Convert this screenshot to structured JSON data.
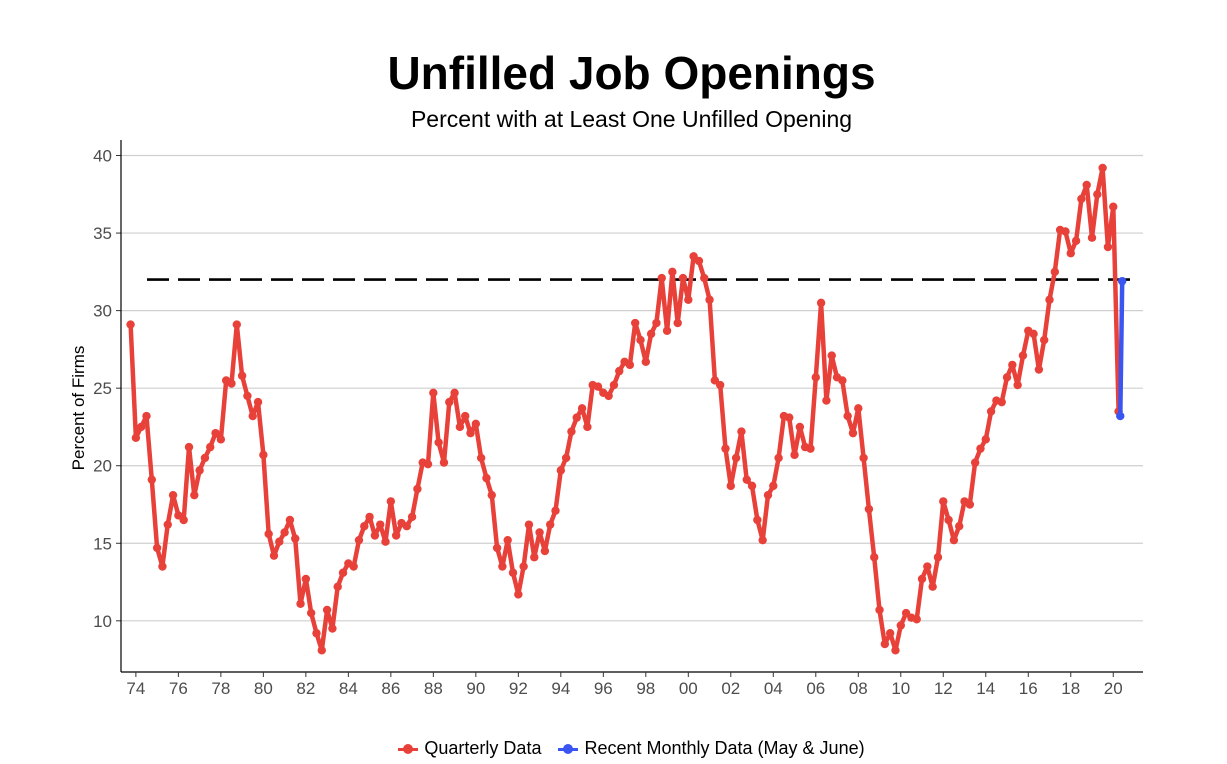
{
  "chart_data": {
    "type": "line",
    "title": "Unfilled Job Openings",
    "subtitle": "Percent with at Least One Unfilled Opening",
    "ylabel": "Percent of Firms",
    "xlabel": "",
    "ylim": [
      6.7,
      41
    ],
    "xlim": [
      1973.3,
      2021.4
    ],
    "x_ticks": [
      1974,
      1976,
      1978,
      1980,
      1982,
      1984,
      1986,
      1988,
      1990,
      1992,
      1994,
      1996,
      1998,
      2000,
      2002,
      2004,
      2006,
      2008,
      2010,
      2012,
      2014,
      2016,
      2018,
      2020
    ],
    "x_tick_labels": [
      "74",
      "76",
      "78",
      "80",
      "82",
      "84",
      "86",
      "88",
      "90",
      "92",
      "94",
      "96",
      "98",
      "00",
      "02",
      "04",
      "06",
      "08",
      "10",
      "12",
      "14",
      "16",
      "18",
      "20"
    ],
    "y_ticks": [
      10,
      15,
      20,
      25,
      30,
      35,
      40
    ],
    "y_tick_labels": [
      "10",
      "15",
      "20",
      "25",
      "30",
      "35",
      "40"
    ],
    "reference_line": {
      "y": 32,
      "style": "dashed",
      "color": "#000000"
    },
    "grid": "horizontal",
    "legend_position": "bottom",
    "series": [
      {
        "name": "Quarterly Data",
        "color": "#e8413a",
        "points": [
          [
            1973.75,
            29.1
          ],
          [
            1974.0,
            21.8
          ],
          [
            1974.25,
            22.5
          ],
          [
            1974.5,
            23.2
          ],
          [
            1974.75,
            19.1
          ],
          [
            1975.0,
            14.7
          ],
          [
            1975.25,
            13.5
          ],
          [
            1975.5,
            16.2
          ],
          [
            1975.75,
            18.1
          ],
          [
            1976.0,
            16.8
          ],
          [
            1976.25,
            16.5
          ],
          [
            1976.5,
            21.2
          ],
          [
            1976.75,
            18.1
          ],
          [
            1977.0,
            19.7
          ],
          [
            1977.25,
            20.5
          ],
          [
            1977.5,
            21.2
          ],
          [
            1977.75,
            22.1
          ],
          [
            1978.0,
            21.7
          ],
          [
            1978.25,
            25.5
          ],
          [
            1978.5,
            25.3
          ],
          [
            1978.75,
            29.1
          ],
          [
            1979.0,
            25.8
          ],
          [
            1979.25,
            24.5
          ],
          [
            1979.5,
            23.2
          ],
          [
            1979.75,
            24.1
          ],
          [
            1980.0,
            20.7
          ],
          [
            1980.25,
            15.6
          ],
          [
            1980.5,
            14.2
          ],
          [
            1980.75,
            15.1
          ],
          [
            1981.0,
            15.7
          ],
          [
            1981.25,
            16.5
          ],
          [
            1981.5,
            15.3
          ],
          [
            1981.75,
            11.1
          ],
          [
            1982.0,
            12.7
          ],
          [
            1982.25,
            10.5
          ],
          [
            1982.5,
            9.2
          ],
          [
            1982.75,
            8.1
          ],
          [
            1983.0,
            10.7
          ],
          [
            1983.25,
            9.5
          ],
          [
            1983.5,
            12.2
          ],
          [
            1983.75,
            13.1
          ],
          [
            1984.0,
            13.7
          ],
          [
            1984.25,
            13.5
          ],
          [
            1984.5,
            15.2
          ],
          [
            1984.75,
            16.1
          ],
          [
            1985.0,
            16.7
          ],
          [
            1985.25,
            15.5
          ],
          [
            1985.5,
            16.2
          ],
          [
            1985.75,
            15.1
          ],
          [
            1986.0,
            17.7
          ],
          [
            1986.25,
            15.5
          ],
          [
            1986.5,
            16.3
          ],
          [
            1986.75,
            16.1
          ],
          [
            1987.0,
            16.7
          ],
          [
            1987.25,
            18.5
          ],
          [
            1987.5,
            20.2
          ],
          [
            1987.75,
            20.1
          ],
          [
            1988.0,
            24.7
          ],
          [
            1988.25,
            21.5
          ],
          [
            1988.5,
            20.2
          ],
          [
            1988.75,
            24.1
          ],
          [
            1989.0,
            24.7
          ],
          [
            1989.25,
            22.5
          ],
          [
            1989.5,
            23.2
          ],
          [
            1989.75,
            22.1
          ],
          [
            1990.0,
            22.7
          ],
          [
            1990.25,
            20.5
          ],
          [
            1990.5,
            19.2
          ],
          [
            1990.75,
            18.1
          ],
          [
            1991.0,
            14.7
          ],
          [
            1991.25,
            13.5
          ],
          [
            1991.5,
            15.2
          ],
          [
            1991.75,
            13.1
          ],
          [
            1992.0,
            11.7
          ],
          [
            1992.25,
            13.5
          ],
          [
            1992.5,
            16.2
          ],
          [
            1992.75,
            14.1
          ],
          [
            1993.0,
            15.7
          ],
          [
            1993.25,
            14.5
          ],
          [
            1993.5,
            16.2
          ],
          [
            1993.75,
            17.1
          ],
          [
            1994.0,
            19.7
          ],
          [
            1994.25,
            20.5
          ],
          [
            1994.5,
            22.2
          ],
          [
            1994.75,
            23.1
          ],
          [
            1995.0,
            23.7
          ],
          [
            1995.25,
            22.5
          ],
          [
            1995.5,
            25.2
          ],
          [
            1995.75,
            25.1
          ],
          [
            1996.0,
            24.7
          ],
          [
            1996.25,
            24.5
          ],
          [
            1996.5,
            25.2
          ],
          [
            1996.75,
            26.1
          ],
          [
            1997.0,
            26.7
          ],
          [
            1997.25,
            26.5
          ],
          [
            1997.5,
            29.2
          ],
          [
            1997.75,
            28.1
          ],
          [
            1998.0,
            26.7
          ],
          [
            1998.25,
            28.5
          ],
          [
            1998.5,
            29.2
          ],
          [
            1998.75,
            32.1
          ],
          [
            1999.0,
            28.7
          ],
          [
            1999.25,
            32.5
          ],
          [
            1999.5,
            29.2
          ],
          [
            1999.75,
            32.1
          ],
          [
            2000.0,
            30.7
          ],
          [
            2000.25,
            33.5
          ],
          [
            2000.5,
            33.2
          ],
          [
            2000.75,
            32.1
          ],
          [
            2001.0,
            30.7
          ],
          [
            2001.25,
            25.5
          ],
          [
            2001.5,
            25.2
          ],
          [
            2001.75,
            21.1
          ],
          [
            2002.0,
            18.7
          ],
          [
            2002.25,
            20.5
          ],
          [
            2002.5,
            22.2
          ],
          [
            2002.75,
            19.1
          ],
          [
            2003.0,
            18.7
          ],
          [
            2003.25,
            16.5
          ],
          [
            2003.5,
            15.2
          ],
          [
            2003.75,
            18.1
          ],
          [
            2004.0,
            18.7
          ],
          [
            2004.25,
            20.5
          ],
          [
            2004.5,
            23.2
          ],
          [
            2004.75,
            23.1
          ],
          [
            2005.0,
            20.7
          ],
          [
            2005.25,
            22.5
          ],
          [
            2005.5,
            21.2
          ],
          [
            2005.75,
            21.1
          ],
          [
            2006.0,
            25.7
          ],
          [
            2006.25,
            30.5
          ],
          [
            2006.5,
            24.2
          ],
          [
            2006.75,
            27.1
          ],
          [
            2007.0,
            25.7
          ],
          [
            2007.25,
            25.5
          ],
          [
            2007.5,
            23.2
          ],
          [
            2007.75,
            22.1
          ],
          [
            2008.0,
            23.7
          ],
          [
            2008.25,
            20.5
          ],
          [
            2008.5,
            17.2
          ],
          [
            2008.75,
            14.1
          ],
          [
            2009.0,
            10.7
          ],
          [
            2009.25,
            8.5
          ],
          [
            2009.5,
            9.2
          ],
          [
            2009.75,
            8.1
          ],
          [
            2010.0,
            9.7
          ],
          [
            2010.25,
            10.5
          ],
          [
            2010.5,
            10.2
          ],
          [
            2010.75,
            10.1
          ],
          [
            2011.0,
            12.7
          ],
          [
            2011.25,
            13.5
          ],
          [
            2011.5,
            12.2
          ],
          [
            2011.75,
            14.1
          ],
          [
            2012.0,
            17.7
          ],
          [
            2012.25,
            16.5
          ],
          [
            2012.5,
            15.2
          ],
          [
            2012.75,
            16.1
          ],
          [
            2013.0,
            17.7
          ],
          [
            2013.25,
            17.5
          ],
          [
            2013.5,
            20.2
          ],
          [
            2013.75,
            21.1
          ],
          [
            2014.0,
            21.7
          ],
          [
            2014.25,
            23.5
          ],
          [
            2014.5,
            24.2
          ],
          [
            2014.75,
            24.1
          ],
          [
            2015.0,
            25.7
          ],
          [
            2015.25,
            26.5
          ],
          [
            2015.5,
            25.2
          ],
          [
            2015.75,
            27.1
          ],
          [
            2016.0,
            28.7
          ],
          [
            2016.25,
            28.5
          ],
          [
            2016.5,
            26.2
          ],
          [
            2016.75,
            28.1
          ],
          [
            2017.0,
            30.7
          ],
          [
            2017.25,
            32.5
          ],
          [
            2017.5,
            35.2
          ],
          [
            2017.75,
            35.1
          ],
          [
            2018.0,
            33.7
          ],
          [
            2018.25,
            34.5
          ],
          [
            2018.5,
            37.2
          ],
          [
            2018.75,
            38.1
          ],
          [
            2019.0,
            34.7
          ],
          [
            2019.25,
            37.5
          ],
          [
            2019.5,
            39.2
          ],
          [
            2019.75,
            34.1
          ],
          [
            2020.0,
            36.7
          ],
          [
            2020.25,
            23.5
          ]
        ]
      },
      {
        "name": "Recent Monthly Data (May & June)",
        "color": "#3a55f0",
        "points": [
          [
            2020.33,
            23.2
          ],
          [
            2020.42,
            31.9
          ]
        ]
      }
    ]
  }
}
